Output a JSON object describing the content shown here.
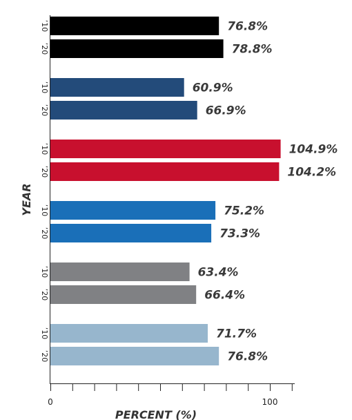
{
  "chart_data": {
    "type": "bar",
    "orientation": "horizontal",
    "xlabel": "PERCENT (%)",
    "ylabel": "YEAR",
    "xlim": [
      0,
      112
    ],
    "x_ticks": [
      0,
      10,
      20,
      30,
      40,
      50,
      60,
      70,
      80,
      90,
      100,
      110
    ],
    "x_tick_labels": [
      {
        "value": 0,
        "label": "0"
      },
      {
        "value": 100,
        "label": "100"
      }
    ],
    "grid": false,
    "groups": [
      {
        "color": "#000000",
        "bars": [
          {
            "year": "’10",
            "value": 76.8,
            "label": "76.8%"
          },
          {
            "year": "’20",
            "value": 78.8,
            "label": "78.8%"
          }
        ]
      },
      {
        "color": "#234b7a",
        "bars": [
          {
            "year": "’10",
            "value": 60.9,
            "label": "60.9%"
          },
          {
            "year": "’20",
            "value": 66.9,
            "label": "66.9%"
          }
        ]
      },
      {
        "color": "#c8102e",
        "bars": [
          {
            "year": "’10",
            "value": 104.9,
            "label": "104.9%"
          },
          {
            "year": "’20",
            "value": 104.2,
            "label": "104.2%"
          }
        ]
      },
      {
        "color": "#1a6fb8",
        "bars": [
          {
            "year": "’10",
            "value": 75.2,
            "label": "75.2%"
          },
          {
            "year": "’20",
            "value": 73.3,
            "label": "73.3%"
          }
        ]
      },
      {
        "color": "#808184",
        "bars": [
          {
            "year": "’10",
            "value": 63.4,
            "label": "63.4%"
          },
          {
            "year": "’20",
            "value": 66.4,
            "label": "66.4%"
          }
        ]
      },
      {
        "color": "#97b6cd",
        "bars": [
          {
            "year": "’10",
            "value": 71.7,
            "label": "71.7%"
          },
          {
            "year": "’20",
            "value": 76.8,
            "label": "76.8%"
          }
        ]
      }
    ]
  }
}
